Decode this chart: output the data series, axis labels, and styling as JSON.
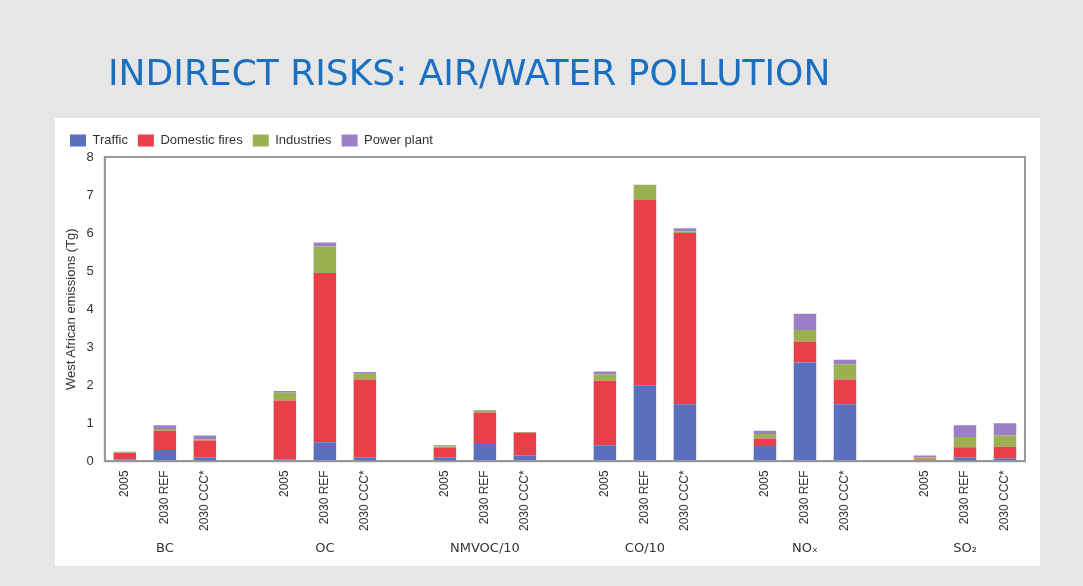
{
  "chart_data": {
    "type": "bar",
    "title": "INDIRECT RISKS: AIR/WATER POLLUTION",
    "ylabel": "West African emissions (Tg)",
    "categories": [
      "2005",
      "2030 REF",
      "2030 CCC*",
      null,
      "2005",
      "2030 REF",
      "2030 CCC*",
      null,
      "2005",
      "2030 REF",
      "2030 CCC*",
      null,
      "2005",
      "2030 REF",
      "2030 CCC*",
      null,
      "2005",
      "2030 REF",
      "2030 CCC*",
      null,
      "2005",
      "2030 REF",
      "2030 CCC*"
    ],
    "stacked": true,
    "ylim": [
      0,
      8
    ],
    "yticks": [
      0,
      1,
      2,
      3,
      4,
      5,
      6,
      7,
      8
    ],
    "grid": false,
    "legend": "top left",
    "series": [
      {
        "name": "Traffic",
        "color": "#5b6fbf",
        "values": [
          0.05,
          0.3,
          0.1,
          null,
          0.05,
          0.5,
          0.1,
          null,
          0.1,
          0.48,
          0.15,
          null,
          0.42,
          2.0,
          1.5,
          null,
          0.4,
          2.6,
          1.5,
          null,
          null,
          0.1,
          0.08
        ]
      },
      {
        "name": "Domestic fires",
        "color": "#e8404a",
        "values": [
          0.17,
          0.5,
          0.45,
          null,
          1.55,
          4.45,
          2.05,
          null,
          0.25,
          0.8,
          0.6,
          null,
          1.7,
          4.87,
          4.5,
          null,
          0.2,
          0.55,
          0.65,
          null,
          0.05,
          0.27,
          0.3
        ]
      },
      {
        "name": "Industries",
        "color": "#9bb050",
        "values": [
          0.02,
          0.05,
          0.03,
          null,
          0.2,
          0.7,
          0.15,
          null,
          0.04,
          0.05,
          0.02,
          null,
          0.16,
          0.4,
          0.05,
          null,
          0.12,
          0.3,
          0.4,
          null,
          0.05,
          0.27,
          0.3
        ]
      },
      {
        "name": "Power plant",
        "color": "#9b80c8",
        "values": [
          0.01,
          0.1,
          0.1,
          null,
          0.05,
          0.1,
          0.05,
          null,
          0.03,
          0.02,
          0,
          null,
          0.08,
          0,
          0.08,
          null,
          0.08,
          0.43,
          0.12,
          null,
          0.05,
          0.31,
          0.32
        ]
      }
    ],
    "annotations": [
      "BC",
      "OC",
      "NMVOC/10",
      "CO/10",
      "NOₓ",
      "SO₂"
    ]
  }
}
